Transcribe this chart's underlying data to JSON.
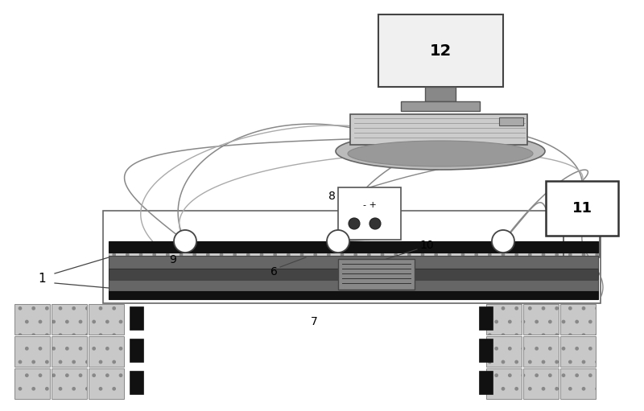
{
  "bg_color": "#ffffff",
  "figsize": [
    8.0,
    5.11
  ],
  "dpi": 100,
  "lc": "#555555",
  "dc": "#222222"
}
